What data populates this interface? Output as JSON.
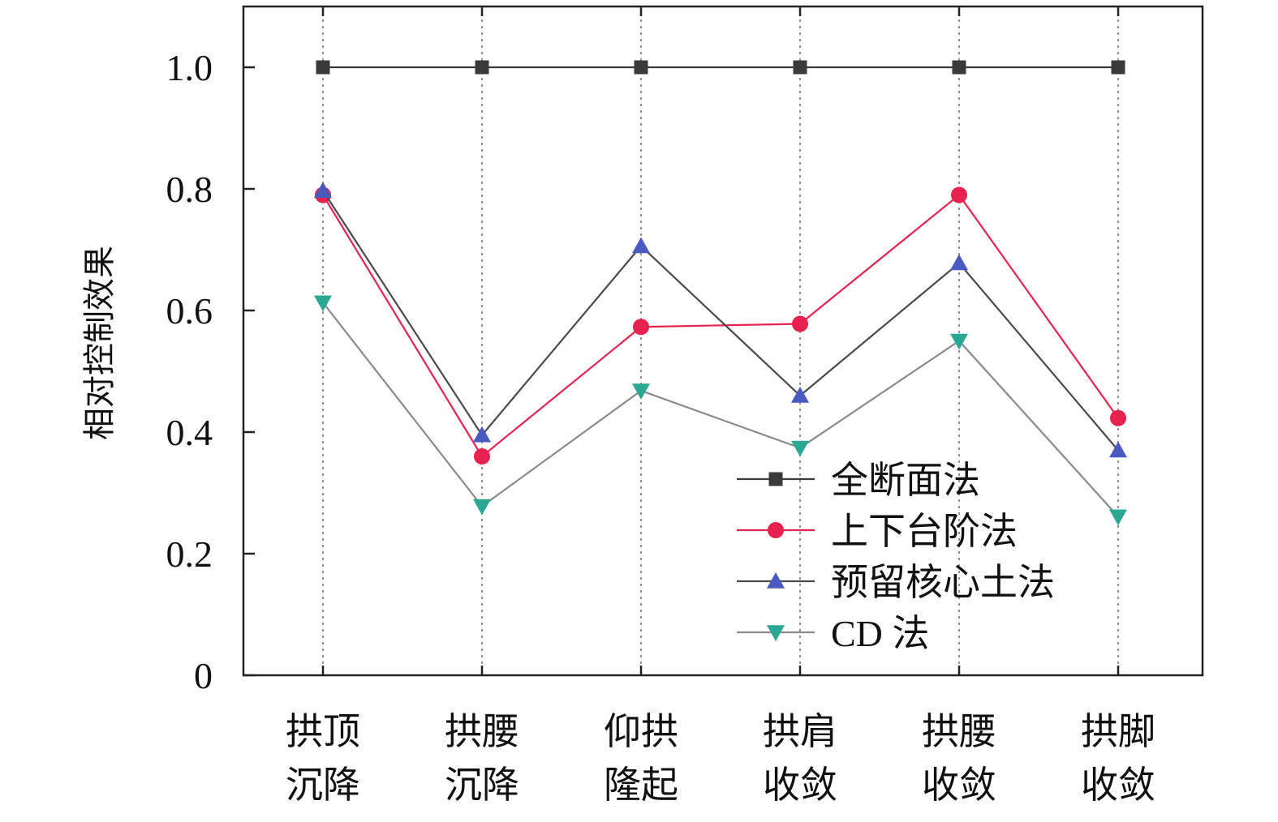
{
  "chart_data": {
    "type": "line",
    "categories": [
      [
        "拱顶",
        "沉降"
      ],
      [
        "拱腰",
        "沉降"
      ],
      [
        "仰拱",
        "隆起"
      ],
      [
        "拱肩",
        "收敛"
      ],
      [
        "拱腰",
        "收敛"
      ],
      [
        "拱脚",
        "收敛"
      ]
    ],
    "ylabel": "相对控制效果",
    "ylim": [
      0,
      1.1
    ],
    "yticks": [
      0,
      0.2,
      0.4,
      0.6,
      0.8,
      1.0
    ],
    "ytick_labels": [
      "0",
      "0.2",
      "0.4",
      "0.6",
      "0.8",
      "1.0"
    ],
    "vertical_dotted_grid": true,
    "legend_position": "lower-right",
    "series": [
      {
        "name": "全断面法",
        "marker": "square",
        "color": "#3a3a3a",
        "line_color": "#3a3a3a",
        "values": [
          1.0,
          1.0,
          1.0,
          1.0,
          1.0,
          1.0
        ]
      },
      {
        "name": "上下台阶法",
        "marker": "circle",
        "color": "#e8224e",
        "line_color": "#e8224e",
        "values": [
          0.79,
          0.36,
          0.573,
          0.578,
          0.79,
          0.423
        ]
      },
      {
        "name": "预留核心土法",
        "marker": "triangle-up",
        "color": "#4a59c0",
        "line_color": "#4a4a4a",
        "values": [
          0.797,
          0.395,
          0.706,
          0.46,
          0.678,
          0.37
        ]
      },
      {
        "name": "CD 法",
        "marker": "triangle-down",
        "color": "#2aa894",
        "line_color": "#8a8a8a",
        "values": [
          0.613,
          0.278,
          0.468,
          0.374,
          0.55,
          0.261
        ]
      }
    ]
  }
}
